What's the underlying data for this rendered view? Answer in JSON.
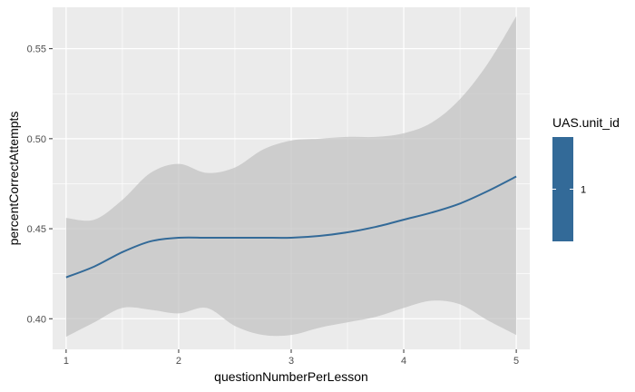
{
  "chart_data": {
    "type": "line",
    "title": "",
    "xlabel": "questionNumberPerLesson",
    "ylabel": "percentCorrectAttempts",
    "xlim": [
      0.88,
      5.12
    ],
    "ylim": [
      0.383,
      0.573
    ],
    "x_ticks": [
      1,
      2,
      3,
      4,
      5
    ],
    "x_tick_labels": [
      "1",
      "2",
      "3",
      "4",
      "5"
    ],
    "y_ticks": [
      0.4,
      0.45,
      0.5,
      0.55
    ],
    "y_tick_labels": [
      "0.40",
      "0.45",
      "0.50",
      "0.55"
    ],
    "grid": true,
    "panel_background": "#ebebeb",
    "ribbon_color": "#bebebe",
    "line_color": "#336a98",
    "legend": {
      "title": "UAS.unit_id",
      "position": "right",
      "labels": [
        "1"
      ],
      "color": "#336a98"
    },
    "series": [
      {
        "x": [
          1.0,
          1.25,
          1.5,
          1.75,
          2.0,
          2.25,
          2.5,
          2.75,
          3.0,
          3.25,
          3.5,
          3.75,
          4.0,
          4.25,
          4.5,
          4.75,
          5.0
        ],
        "y": [
          0.423,
          0.429,
          0.437,
          0.443,
          0.445,
          0.445,
          0.445,
          0.445,
          0.445,
          0.446,
          0.448,
          0.451,
          0.455,
          0.459,
          0.464,
          0.471,
          0.479
        ],
        "lower": [
          0.39,
          0.398,
          0.406,
          0.405,
          0.403,
          0.406,
          0.396,
          0.391,
          0.391,
          0.395,
          0.398,
          0.401,
          0.406,
          0.41,
          0.408,
          0.399,
          0.391
        ],
        "upper": [
          0.456,
          0.455,
          0.466,
          0.481,
          0.486,
          0.481,
          0.484,
          0.494,
          0.499,
          0.5,
          0.501,
          0.501,
          0.503,
          0.509,
          0.522,
          0.542,
          0.568
        ]
      }
    ]
  }
}
